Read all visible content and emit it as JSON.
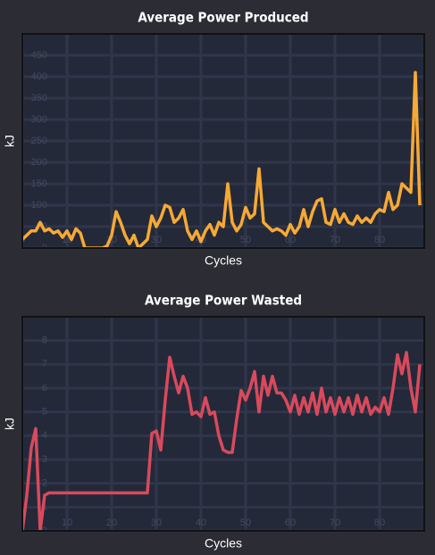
{
  "chart_data": [
    {
      "type": "line",
      "title": "Average Power Produced",
      "xlabel": "Cycles",
      "ylabel": "kJ",
      "color": "#f7a934",
      "grid": true,
      "x": [
        0,
        1,
        2,
        3,
        4,
        5,
        6,
        7,
        8,
        9,
        10,
        11,
        12,
        13,
        14,
        15,
        16,
        17,
        18,
        19,
        20,
        21,
        22,
        23,
        24,
        25,
        26,
        27,
        28,
        29,
        30,
        31,
        32,
        33,
        34,
        35,
        36,
        37,
        38,
        39,
        40,
        41,
        42,
        43,
        44,
        45,
        46,
        47,
        48,
        49,
        50,
        51,
        52,
        53,
        54,
        55,
        56,
        57,
        58,
        59,
        60,
        61,
        62,
        63,
        64,
        65,
        66,
        67,
        68,
        69,
        70,
        71,
        72,
        73,
        74,
        75,
        76,
        77,
        78,
        79,
        80,
        81,
        82,
        83,
        84,
        85,
        86,
        87,
        88,
        89
      ],
      "values": [
        20,
        30,
        40,
        40,
        60,
        40,
        45,
        35,
        40,
        25,
        40,
        20,
        45,
        35,
        0,
        0,
        0,
        0,
        0,
        5,
        30,
        85,
        60,
        30,
        10,
        30,
        0,
        10,
        20,
        75,
        50,
        70,
        100,
        95,
        60,
        70,
        90,
        40,
        20,
        40,
        15,
        40,
        55,
        30,
        60,
        50,
        150,
        60,
        40,
        55,
        95,
        70,
        80,
        185,
        60,
        50,
        40,
        45,
        40,
        30,
        55,
        35,
        50,
        90,
        50,
        85,
        110,
        115,
        60,
        55,
        90,
        60,
        80,
        60,
        55,
        75,
        60,
        70,
        60,
        80,
        90,
        85,
        130,
        90,
        100,
        150,
        140,
        130,
        410,
        100
      ],
      "xlim": [
        0,
        90
      ],
      "xticks": [
        0,
        10,
        20,
        30,
        40,
        50,
        60,
        70,
        80
      ],
      "ylim": [
        0,
        500
      ],
      "yticks": [
        0,
        50,
        100,
        150,
        200,
        250,
        300,
        350,
        400,
        450
      ]
    },
    {
      "type": "line",
      "title": "Average Power Wasted",
      "xlabel": "Cycles",
      "ylabel": "kJ",
      "color": "#d84a5c",
      "grid": true,
      "x": [
        0,
        1,
        2,
        3,
        4,
        5,
        6,
        7,
        8,
        9,
        10,
        11,
        12,
        13,
        14,
        15,
        16,
        17,
        18,
        19,
        20,
        21,
        22,
        23,
        24,
        25,
        26,
        27,
        28,
        29,
        30,
        31,
        32,
        33,
        34,
        35,
        36,
        37,
        38,
        39,
        40,
        41,
        42,
        43,
        44,
        45,
        46,
        47,
        48,
        49,
        50,
        51,
        52,
        53,
        54,
        55,
        56,
        57,
        58,
        59,
        60,
        61,
        62,
        63,
        64,
        65,
        66,
        67,
        68,
        69,
        70,
        71,
        72,
        73,
        74,
        75,
        76,
        77,
        78,
        79,
        80,
        81,
        82,
        83,
        84,
        85,
        86,
        87,
        88,
        89
      ],
      "values": [
        0,
        1.5,
        3.5,
        4.3,
        0,
        1.5,
        1.6,
        1.6,
        1.6,
        1.6,
        1.6,
        1.6,
        1.6,
        1.6,
        1.6,
        1.6,
        1.6,
        1.6,
        1.6,
        1.6,
        1.6,
        1.6,
        1.6,
        1.6,
        1.6,
        1.6,
        1.6,
        1.6,
        1.6,
        4.1,
        4.2,
        3.4,
        5.5,
        7.3,
        6.5,
        5.8,
        6.5,
        6.0,
        4.9,
        5.0,
        4.8,
        5.6,
        4.9,
        5.0,
        4.0,
        3.4,
        3.3,
        3.3,
        4.7,
        5.9,
        5.5,
        6.0,
        6.7,
        5.0,
        6.5,
        5.7,
        6.5,
        5.8,
        5.8,
        5.5,
        5.0,
        5.7,
        4.9,
        5.6,
        5.0,
        5.8,
        4.9,
        6.0,
        5.0,
        5.6,
        4.9,
        5.6,
        5.0,
        5.6,
        4.9,
        5.7,
        5.0,
        5.6,
        4.9,
        5.2,
        5.0,
        5.6,
        4.9,
        6.0,
        7.4,
        6.6,
        7.5,
        6.0,
        5.0,
        7.0
      ],
      "xlim": [
        0,
        90
      ],
      "xticks": [
        0,
        10,
        20,
        30,
        40,
        50,
        60,
        70,
        80
      ],
      "ylim": [
        0,
        9
      ],
      "yticks": [
        0,
        1,
        2,
        3,
        4,
        5,
        6,
        7,
        8
      ]
    }
  ]
}
